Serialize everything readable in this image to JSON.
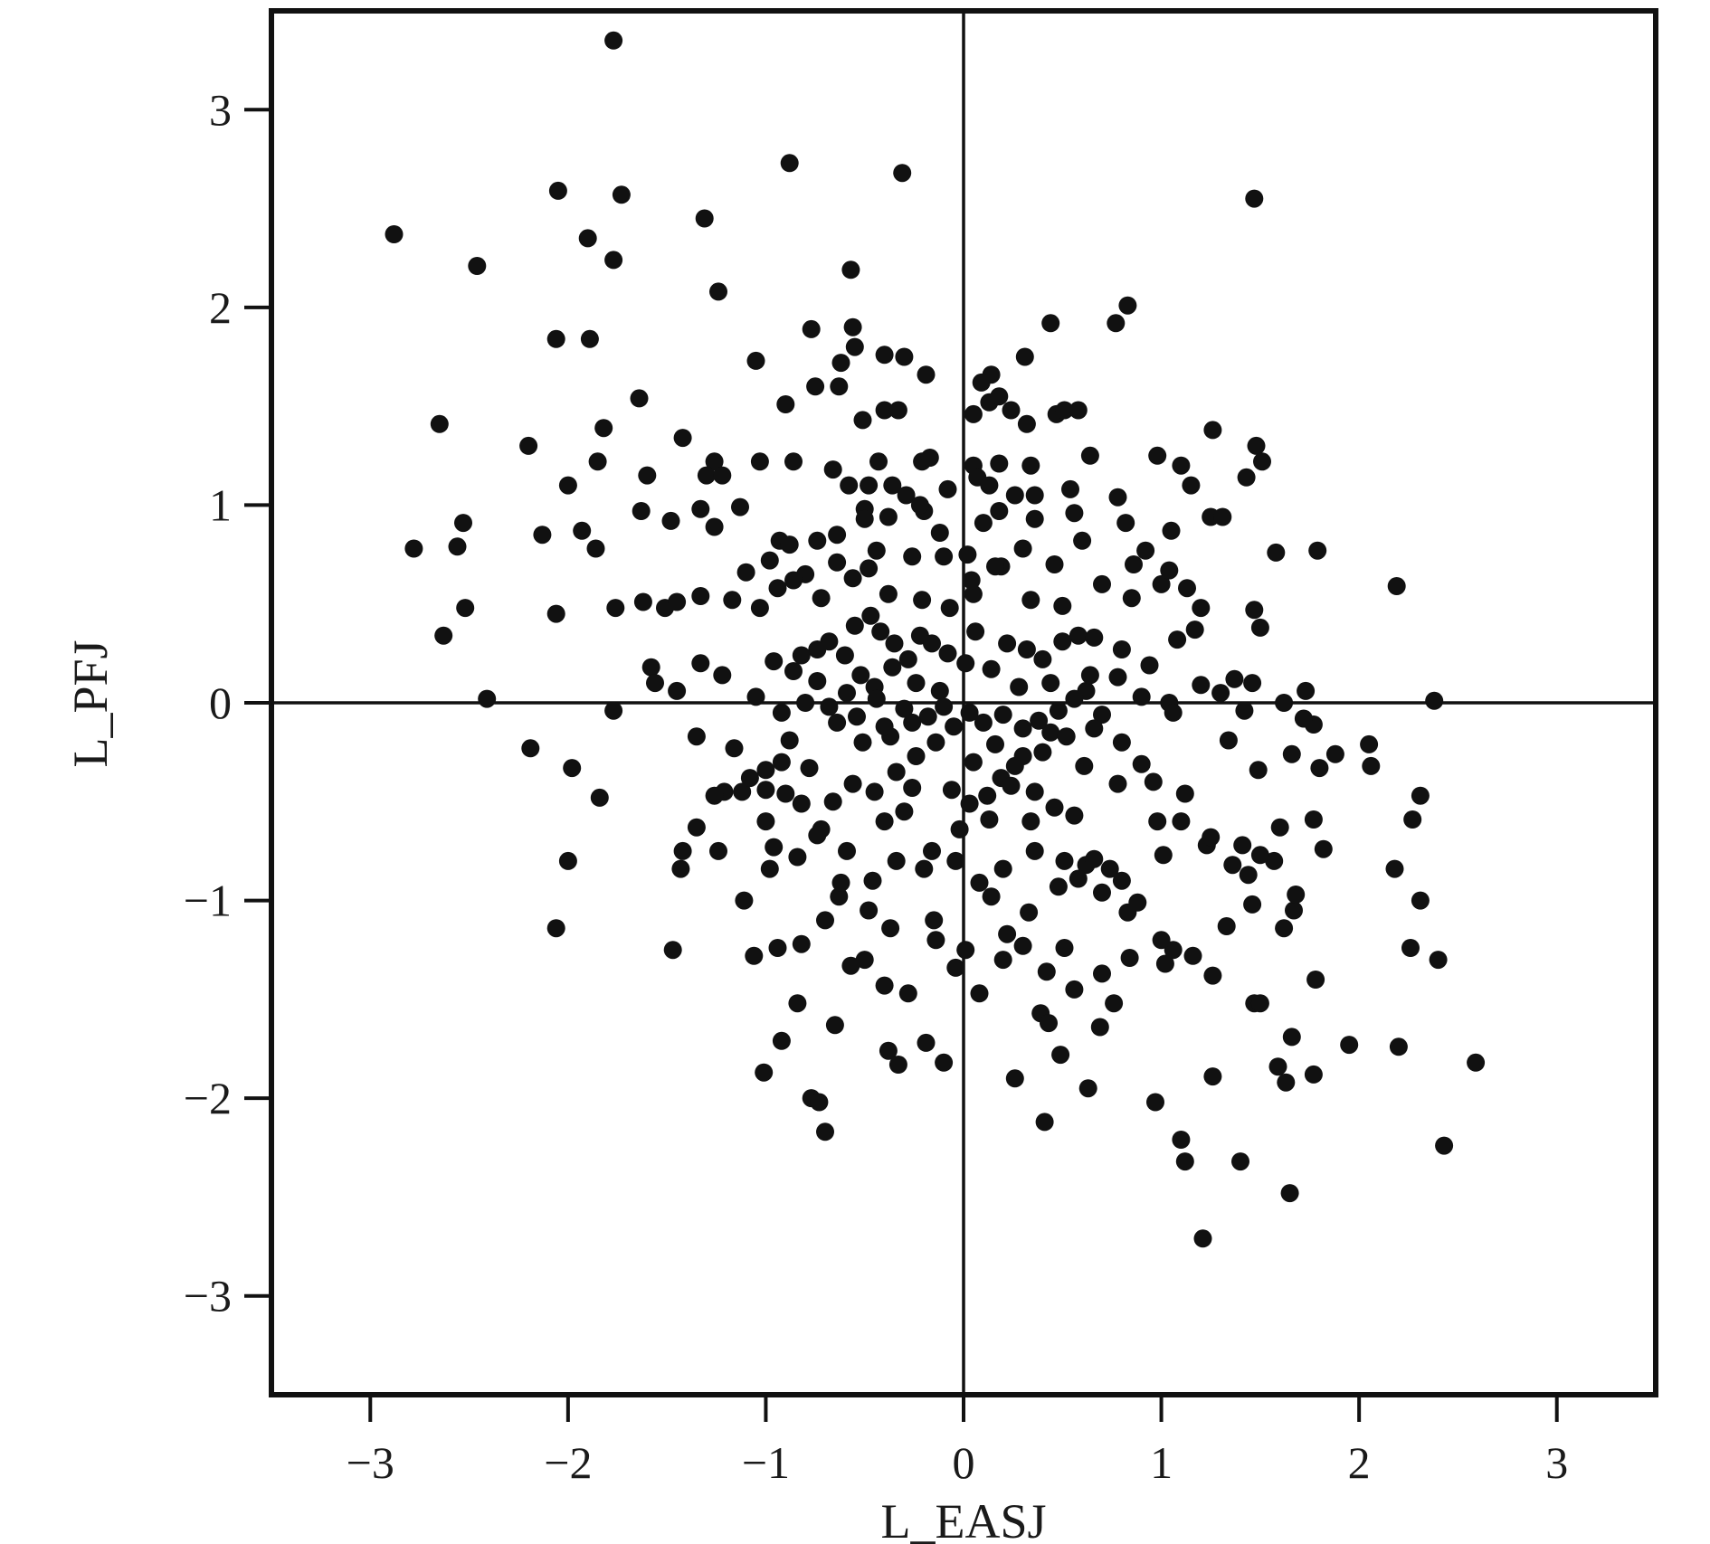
{
  "chart_data": {
    "type": "scatter",
    "xlabel": "L_EASJ",
    "ylabel": "L_PFJ",
    "xlim": [
      -3.5,
      3.5
    ],
    "ylim": [
      -3.5,
      3.5
    ],
    "x_ticks": [
      -3,
      -2,
      -1,
      0,
      1,
      2,
      3
    ],
    "y_ticks": [
      -3,
      -2,
      -1,
      0,
      1,
      2,
      3
    ],
    "x_tick_labels": [
      "−3",
      "−2",
      "−1",
      "0",
      "1",
      "2",
      "3"
    ],
    "y_tick_labels": [
      "−3",
      "−2",
      "−1",
      "0",
      "1",
      "2",
      "3"
    ],
    "reference_lines": {
      "x": 0,
      "y": 0
    },
    "grid": false,
    "legend": "none",
    "colors": {
      "points": "#111111",
      "axes": "#111111"
    },
    "points": [
      [
        -1.77,
        3.35
      ],
      [
        -0.88,
        2.73
      ],
      [
        -0.31,
        2.68
      ],
      [
        1.47,
        2.55
      ],
      [
        -2.88,
        2.37
      ],
      [
        -2.05,
        2.59
      ],
      [
        -1.73,
        2.57
      ],
      [
        -1.9,
        2.35
      ],
      [
        -1.77,
        2.24
      ],
      [
        -1.31,
        2.45
      ],
      [
        -2.46,
        2.21
      ],
      [
        -1.24,
        2.08
      ],
      [
        -0.57,
        2.19
      ],
      [
        0.44,
        1.92
      ],
      [
        0.83,
        2.01
      ],
      [
        0.77,
        1.92
      ],
      [
        -2.06,
        1.84
      ],
      [
        -1.89,
        1.84
      ],
      [
        -0.77,
        1.89
      ],
      [
        -0.56,
        1.9
      ],
      [
        -1.05,
        1.73
      ],
      [
        -0.3,
        1.75
      ],
      [
        -0.4,
        1.76
      ],
      [
        -0.19,
        1.66
      ],
      [
        0.14,
        1.66
      ],
      [
        0.31,
        1.75
      ],
      [
        -0.62,
        1.72
      ],
      [
        -0.55,
        1.8
      ],
      [
        -2.65,
        1.41
      ],
      [
        -1.64,
        1.54
      ],
      [
        -1.82,
        1.39
      ],
      [
        -0.9,
        1.51
      ],
      [
        -0.75,
        1.6
      ],
      [
        -0.63,
        1.6
      ],
      [
        -0.51,
        1.43
      ],
      [
        -0.4,
        1.48
      ],
      [
        -0.33,
        1.48
      ],
      [
        0.05,
        1.46
      ],
      [
        0.13,
        1.52
      ],
      [
        0.18,
        1.55
      ],
      [
        0.24,
        1.48
      ],
      [
        0.32,
        1.41
      ],
      [
        0.47,
        1.46
      ],
      [
        0.51,
        1.48
      ],
      [
        0.58,
        1.48
      ],
      [
        0.09,
        1.62
      ],
      [
        1.26,
        1.38
      ],
      [
        1.48,
        1.3
      ],
      [
        1.51,
        1.22
      ],
      [
        -2.2,
        1.3
      ],
      [
        -1.42,
        1.34
      ],
      [
        -1.85,
        1.22
      ],
      [
        -1.26,
        1.22
      ],
      [
        -1.03,
        1.22
      ],
      [
        -0.86,
        1.22
      ],
      [
        -0.66,
        1.18
      ],
      [
        -0.43,
        1.22
      ],
      [
        -0.21,
        1.22
      ],
      [
        -0.17,
        1.24
      ],
      [
        0.05,
        1.2
      ],
      [
        0.18,
        1.21
      ],
      [
        0.34,
        1.2
      ],
      [
        0.64,
        1.25
      ],
      [
        0.98,
        1.25
      ],
      [
        1.1,
        1.2
      ],
      [
        1.15,
        1.1
      ],
      [
        1.43,
        1.14
      ],
      [
        -2.0,
        1.1
      ],
      [
        -1.6,
        1.15
      ],
      [
        -1.3,
        1.15
      ],
      [
        -1.22,
        1.15
      ],
      [
        -0.58,
        1.1
      ],
      [
        -0.48,
        1.1
      ],
      [
        -0.36,
        1.1
      ],
      [
        -0.29,
        1.05
      ],
      [
        -0.08,
        1.08
      ],
      [
        0.07,
        1.14
      ],
      [
        0.13,
        1.1
      ],
      [
        0.26,
        1.05
      ],
      [
        0.36,
        1.05
      ],
      [
        0.54,
        1.08
      ],
      [
        0.78,
        1.04
      ],
      [
        -2.53,
        0.91
      ],
      [
        -2.78,
        0.78
      ],
      [
        -2.56,
        0.79
      ],
      [
        -2.13,
        0.85
      ],
      [
        -1.93,
        0.87
      ],
      [
        -1.86,
        0.78
      ],
      [
        -1.63,
        0.97
      ],
      [
        -1.48,
        0.92
      ],
      [
        -1.33,
        0.98
      ],
      [
        -1.26,
        0.89
      ],
      [
        -1.13,
        0.99
      ],
      [
        -0.93,
        0.82
      ],
      [
        -0.88,
        0.8
      ],
      [
        -0.74,
        0.82
      ],
      [
        -0.5,
        0.98
      ],
      [
        -0.2,
        0.97
      ],
      [
        0.1,
        0.91
      ],
      [
        0.18,
        0.97
      ],
      [
        0.36,
        0.93
      ],
      [
        0.56,
        0.96
      ],
      [
        0.82,
        0.91
      ],
      [
        1.05,
        0.87
      ],
      [
        1.25,
        0.94
      ],
      [
        1.31,
        0.94
      ],
      [
        -2.52,
        0.48
      ],
      [
        -2.63,
        0.34
      ],
      [
        -2.06,
        0.45
      ],
      [
        -1.76,
        0.48
      ],
      [
        -1.62,
        0.51
      ],
      [
        -1.51,
        0.48
      ],
      [
        -1.45,
        0.51
      ],
      [
        -1.33,
        0.54
      ],
      [
        -1.17,
        0.52
      ],
      [
        -1.03,
        0.48
      ],
      [
        -0.94,
        0.58
      ],
      [
        -0.8,
        0.65
      ],
      [
        -0.64,
        0.71
      ],
      [
        -0.48,
        0.68
      ],
      [
        -0.38,
        0.55
      ],
      [
        -0.21,
        0.52
      ],
      [
        -0.07,
        0.48
      ],
      [
        0.05,
        0.55
      ],
      [
        0.19,
        0.69
      ],
      [
        0.34,
        0.52
      ],
      [
        0.5,
        0.49
      ],
      [
        0.58,
        0.34
      ],
      [
        0.85,
        0.53
      ],
      [
        1.0,
        0.6
      ],
      [
        1.2,
        0.48
      ],
      [
        1.47,
        0.47
      ],
      [
        1.5,
        0.38
      ],
      [
        1.58,
        0.76
      ],
      [
        1.79,
        0.77
      ],
      [
        2.19,
        0.59
      ],
      [
        -2.41,
        0.02
      ],
      [
        -1.77,
        -0.04
      ],
      [
        -1.58,
        0.18
      ],
      [
        -1.56,
        0.1
      ],
      [
        -1.45,
        0.06
      ],
      [
        -1.33,
        0.2
      ],
      [
        -1.22,
        0.14
      ],
      [
        -1.05,
        0.03
      ],
      [
        -0.96,
        0.21
      ],
      [
        -0.86,
        0.16
      ],
      [
        -0.74,
        0.11
      ],
      [
        -0.59,
        0.05
      ],
      [
        -0.45,
        0.08
      ],
      [
        -0.36,
        0.18
      ],
      [
        -0.24,
        0.1
      ],
      [
        -0.12,
        0.06
      ],
      [
        0.01,
        0.2
      ],
      [
        0.14,
        0.17
      ],
      [
        0.28,
        0.08
      ],
      [
        0.44,
        0.1
      ],
      [
        0.62,
        0.06
      ],
      [
        0.78,
        0.13
      ],
      [
        0.9,
        0.03
      ],
      [
        1.04,
        0.0
      ],
      [
        1.2,
        0.09
      ],
      [
        1.37,
        0.12
      ],
      [
        1.46,
        0.1
      ],
      [
        1.62,
        0.0
      ],
      [
        1.73,
        0.06
      ],
      [
        2.38,
        0.01
      ],
      [
        -2.19,
        -0.23
      ],
      [
        -1.98,
        -0.33
      ],
      [
        -1.84,
        -0.48
      ],
      [
        -1.35,
        -0.17
      ],
      [
        -1.21,
        -0.45
      ],
      [
        -1.12,
        -0.45
      ],
      [
        -1.0,
        -0.34
      ],
      [
        -0.88,
        -0.19
      ],
      [
        -0.78,
        -0.33
      ],
      [
        -0.64,
        -0.1
      ],
      [
        -0.51,
        -0.2
      ],
      [
        -0.37,
        -0.17
      ],
      [
        -0.24,
        -0.27
      ],
      [
        -0.14,
        -0.2
      ],
      [
        -0.05,
        -0.12
      ],
      [
        0.05,
        -0.3
      ],
      [
        0.19,
        -0.38
      ],
      [
        0.3,
        -0.27
      ],
      [
        0.44,
        -0.15
      ],
      [
        0.61,
        -0.32
      ],
      [
        0.78,
        -0.41
      ],
      [
        0.96,
        -0.4
      ],
      [
        1.12,
        -0.46
      ],
      [
        1.34,
        -0.19
      ],
      [
        1.49,
        -0.34
      ],
      [
        1.66,
        -0.26
      ],
      [
        1.77,
        -0.11
      ],
      [
        1.8,
        -0.33
      ],
      [
        2.05,
        -0.21
      ],
      [
        2.31,
        -0.47
      ],
      [
        -2.0,
        -0.8
      ],
      [
        -1.42,
        -0.75
      ],
      [
        -1.24,
        -0.75
      ],
      [
        -1.0,
        -0.6
      ],
      [
        -0.96,
        -0.73
      ],
      [
        -0.72,
        -0.64
      ],
      [
        -0.59,
        -0.75
      ],
      [
        -0.4,
        -0.6
      ],
      [
        -0.3,
        -0.55
      ],
      [
        -0.16,
        -0.75
      ],
      [
        -0.02,
        -0.64
      ],
      [
        0.13,
        -0.59
      ],
      [
        0.34,
        -0.6
      ],
      [
        0.51,
        -0.8
      ],
      [
        0.62,
        -0.82
      ],
      [
        0.74,
        -0.84
      ],
      [
        0.98,
        -0.6
      ],
      [
        1.01,
        -0.77
      ],
      [
        1.23,
        -0.72
      ],
      [
        1.41,
        -0.72
      ],
      [
        1.44,
        -0.87
      ],
      [
        1.57,
        -0.8
      ],
      [
        1.6,
        -0.63
      ],
      [
        1.77,
        -0.59
      ],
      [
        2.18,
        -0.84
      ],
      [
        2.27,
        -0.59
      ],
      [
        -2.06,
        -1.14
      ],
      [
        -1.47,
        -1.25
      ],
      [
        -1.11,
        -1.0
      ],
      [
        -1.06,
        -1.28
      ],
      [
        -0.94,
        -1.24
      ],
      [
        -0.82,
        -1.22
      ],
      [
        -0.7,
        -1.1
      ],
      [
        -0.63,
        -0.98
      ],
      [
        -0.48,
        -1.05
      ],
      [
        -0.37,
        -1.14
      ],
      [
        -0.15,
        -1.1
      ],
      [
        0.01,
        -1.25
      ],
      [
        0.14,
        -0.98
      ],
      [
        0.22,
        -1.17
      ],
      [
        0.33,
        -1.06
      ],
      [
        0.51,
        -1.24
      ],
      [
        0.7,
        -0.96
      ],
      [
        0.83,
        -1.06
      ],
      [
        1.02,
        -1.32
      ],
      [
        1.06,
        -1.25
      ],
      [
        1.16,
        -1.28
      ],
      [
        1.33,
        -1.13
      ],
      [
        1.46,
        -1.02
      ],
      [
        1.62,
        -1.14
      ],
      [
        1.67,
        -1.05
      ],
      [
        2.31,
        -1.0
      ],
      [
        2.4,
        -1.3
      ],
      [
        2.26,
        -1.24
      ],
      [
        -1.01,
        -1.87
      ],
      [
        -0.92,
        -1.71
      ],
      [
        -0.84,
        -1.52
      ],
      [
        -0.77,
        -2.0
      ],
      [
        -0.73,
        -2.02
      ],
      [
        -0.7,
        -2.17
      ],
      [
        -0.65,
        -1.63
      ],
      [
        -0.57,
        -1.33
      ],
      [
        -0.38,
        -1.76
      ],
      [
        -0.33,
        -1.83
      ],
      [
        -0.19,
        -1.72
      ],
      [
        -0.1,
        -1.82
      ],
      [
        0.26,
        -1.9
      ],
      [
        0.39,
        -1.57
      ],
      [
        0.41,
        -2.12
      ],
      [
        0.49,
        -1.78
      ],
      [
        0.63,
        -1.95
      ],
      [
        0.69,
        -1.64
      ],
      [
        0.97,
        -2.02
      ],
      [
        1.1,
        -2.21
      ],
      [
        1.12,
        -2.32
      ],
      [
        1.26,
        -1.89
      ],
      [
        1.4,
        -2.32
      ],
      [
        1.47,
        -1.52
      ],
      [
        1.59,
        -1.84
      ],
      [
        1.63,
        -1.92
      ],
      [
        1.66,
        -1.69
      ],
      [
        1.77,
        -1.88
      ],
      [
        1.95,
        -1.73
      ],
      [
        2.2,
        -1.74
      ],
      [
        2.59,
        -1.82
      ],
      [
        2.43,
        -2.24
      ],
      [
        1.65,
        -2.48
      ],
      [
        1.21,
        -2.71
      ],
      [
        0.76,
        -1.52
      ],
      [
        0.43,
        -1.62
      ],
      [
        -0.55,
        0.39
      ],
      [
        -0.47,
        0.44
      ],
      [
        -0.42,
        0.36
      ],
      [
        -0.35,
        0.3
      ],
      [
        -0.28,
        0.22
      ],
      [
        -0.22,
        0.34
      ],
      [
        -0.6,
        0.24
      ],
      [
        -0.68,
        0.31
      ],
      [
        -0.74,
        0.27
      ],
      [
        -0.82,
        0.24
      ],
      [
        -0.52,
        0.14
      ],
      [
        -0.44,
        0.02
      ],
      [
        -0.3,
        -0.03
      ],
      [
        -0.18,
        -0.07
      ],
      [
        -0.1,
        -0.02
      ],
      [
        0.03,
        -0.05
      ],
      [
        0.1,
        -0.1
      ],
      [
        0.2,
        -0.06
      ],
      [
        0.3,
        -0.13
      ],
      [
        0.38,
        -0.09
      ],
      [
        0.48,
        -0.04
      ],
      [
        0.56,
        0.02
      ],
      [
        0.64,
        0.14
      ],
      [
        0.7,
        -0.06
      ],
      [
        -0.16,
        0.3
      ],
      [
        -0.08,
        0.25
      ],
      [
        0.06,
        0.36
      ],
      [
        0.22,
        0.3
      ],
      [
        0.32,
        0.27
      ],
      [
        0.4,
        0.22
      ],
      [
        0.5,
        0.31
      ],
      [
        0.66,
        0.33
      ],
      [
        0.8,
        0.27
      ],
      [
        0.94,
        0.19
      ],
      [
        1.08,
        0.32
      ],
      [
        1.17,
        0.37
      ],
      [
        -0.34,
        -0.35
      ],
      [
        -0.26,
        -0.43
      ],
      [
        -0.06,
        -0.44
      ],
      [
        0.03,
        -0.51
      ],
      [
        0.12,
        -0.47
      ],
      [
        0.24,
        -0.42
      ],
      [
        0.36,
        -0.45
      ],
      [
        0.46,
        -0.53
      ],
      [
        0.56,
        -0.57
      ],
      [
        -0.45,
        -0.45
      ],
      [
        -0.56,
        -0.41
      ],
      [
        -0.66,
        -0.5
      ],
      [
        -0.82,
        -0.51
      ],
      [
        -0.9,
        -0.46
      ],
      [
        -1.0,
        -0.44
      ],
      [
        -1.08,
        -0.38
      ],
      [
        -1.16,
        -0.23
      ],
      [
        -1.26,
        -0.47
      ],
      [
        -1.1,
        0.66
      ],
      [
        -0.98,
        0.72
      ],
      [
        -0.86,
        0.62
      ],
      [
        -0.72,
        0.53
      ],
      [
        -0.56,
        0.63
      ],
      [
        -0.44,
        0.77
      ],
      [
        -0.26,
        0.74
      ],
      [
        -0.1,
        0.74
      ],
      [
        0.02,
        0.75
      ],
      [
        0.16,
        0.69
      ],
      [
        0.3,
        0.78
      ],
      [
        0.46,
        0.7
      ],
      [
        0.6,
        0.82
      ],
      [
        0.7,
        0.6
      ],
      [
        0.86,
        0.7
      ],
      [
        0.92,
        0.77
      ],
      [
        1.04,
        0.67
      ],
      [
        1.13,
        0.58
      ],
      [
        -0.12,
        0.86
      ],
      [
        0.04,
        0.62
      ],
      [
        -0.64,
        0.85
      ],
      [
        -0.5,
        0.93
      ],
      [
        -0.38,
        0.94
      ],
      [
        -0.22,
        1.0
      ],
      [
        -0.92,
        -0.05
      ],
      [
        -0.8,
        0.0
      ],
      [
        -0.68,
        -0.02
      ],
      [
        -0.54,
        -0.07
      ],
      [
        -0.4,
        -0.12
      ],
      [
        -0.26,
        -0.1
      ],
      [
        0.16,
        -0.21
      ],
      [
        0.26,
        -0.32
      ],
      [
        0.4,
        -0.25
      ],
      [
        0.52,
        -0.17
      ],
      [
        0.66,
        -0.13
      ],
      [
        0.8,
        -0.2
      ],
      [
        1.06,
        -0.05
      ],
      [
        1.3,
        0.05
      ],
      [
        1.42,
        -0.04
      ],
      [
        1.72,
        -0.08
      ],
      [
        1.88,
        -0.26
      ],
      [
        2.06,
        -0.32
      ],
      [
        -1.43,
        -0.84
      ],
      [
        -1.35,
        -0.63
      ],
      [
        -0.98,
        -0.84
      ],
      [
        -0.84,
        -0.78
      ],
      [
        -0.74,
        -0.67
      ],
      [
        -0.62,
        -0.91
      ],
      [
        -0.46,
        -0.9
      ],
      [
        -0.34,
        -0.8
      ],
      [
        -0.2,
        -0.84
      ],
      [
        -0.04,
        -0.8
      ],
      [
        0.08,
        -0.91
      ],
      [
        0.2,
        -0.84
      ],
      [
        0.36,
        -0.75
      ],
      [
        0.48,
        -0.93
      ],
      [
        0.58,
        -0.89
      ],
      [
        0.66,
        -0.79
      ],
      [
        0.8,
        -0.9
      ],
      [
        0.88,
        -1.01
      ],
      [
        1.1,
        -0.6
      ],
      [
        1.25,
        -0.68
      ],
      [
        1.36,
        -0.82
      ],
      [
        1.5,
        -0.77
      ],
      [
        1.68,
        -0.97
      ],
      [
        1.82,
        -0.74
      ],
      [
        -0.5,
        -1.3
      ],
      [
        -0.4,
        -1.43
      ],
      [
        -0.28,
        -1.47
      ],
      [
        -0.14,
        -1.2
      ],
      [
        -0.04,
        -1.34
      ],
      [
        0.08,
        -1.47
      ],
      [
        0.2,
        -1.3
      ],
      [
        0.3,
        -1.23
      ],
      [
        0.42,
        -1.36
      ],
      [
        0.56,
        -1.45
      ],
      [
        0.7,
        -1.37
      ],
      [
        0.84,
        -1.29
      ],
      [
        -0.92,
        -0.3
      ],
      [
        0.9,
        -0.31
      ],
      [
        1.0,
        -1.2
      ],
      [
        1.26,
        -1.38
      ],
      [
        1.5,
        -1.52
      ],
      [
        1.78,
        -1.4
      ]
    ]
  }
}
